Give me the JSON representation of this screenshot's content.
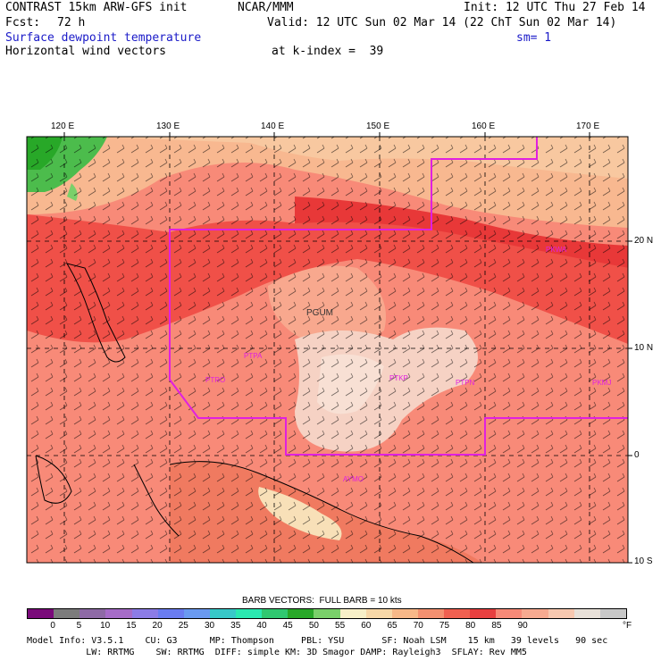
{
  "header": {
    "model_title": "CONTRAST 15km ARW-GFS init",
    "org": "NCAR/MMM",
    "init": "Init: 12 UTC Thu 27 Feb 14",
    "fcst_label": "Fcst:",
    "fcst_value": "72 h",
    "valid": "Valid: 12 UTC Sun 02 Mar 14 (22 ChT Sun 02 Mar 14)",
    "field_name": "Surface dewpoint temperature",
    "smoothing": "sm= 1",
    "vector_name": "Horizontal wind vectors",
    "level": "at k-index =  39"
  },
  "map": {
    "lon_labels": [
      "120 E",
      "130 E",
      "140 E",
      "150 E",
      "160 E",
      "170 E"
    ],
    "lat_labels": [
      "20 N",
      "10 N",
      "0",
      "10 S"
    ],
    "stations": [
      "PGUM",
      "PTPA",
      "PTRO",
      "PTKP",
      "PTPN",
      "PKMJ",
      "PKWA",
      "AYMO"
    ]
  },
  "legend": {
    "barb_caption": "BARB VECTORS:  FULL BARB = 10 kts",
    "levels": [
      "0",
      "5",
      "10",
      "15",
      "20",
      "25",
      "30",
      "35",
      "40",
      "45",
      "50",
      "55",
      "60",
      "65",
      "70",
      "75",
      "80",
      "85",
      "90"
    ],
    "unit": "°F",
    "colors": [
      "#7a0a7a",
      "#7c7c7c",
      "#8e6aa6",
      "#a66cc8",
      "#8c7ce6",
      "#6a7cf0",
      "#6a9af0",
      "#38c8c8",
      "#2ae8b0",
      "#30c870",
      "#28a828",
      "#7ad06a",
      "#f8f0c8",
      "#f8d8a8",
      "#f8b888",
      "#f49070",
      "#f06050",
      "#e84040",
      "#f88a78",
      "#f8aa90",
      "#f8c8b0",
      "#e8e0d8",
      "#c8c8c8"
    ]
  },
  "footer": {
    "line1": "Model Info: V3.5.1    CU: G3      MP: Thompson     PBL: YSU       SF: Noah LSM    15 km   39 levels   90 sec",
    "line2": "           LW: RRTMG    SW: RRTMG  DIFF: simple KM: 3D Smagor DAMP: Rayleigh3  SFLAY: Rev MM5"
  }
}
